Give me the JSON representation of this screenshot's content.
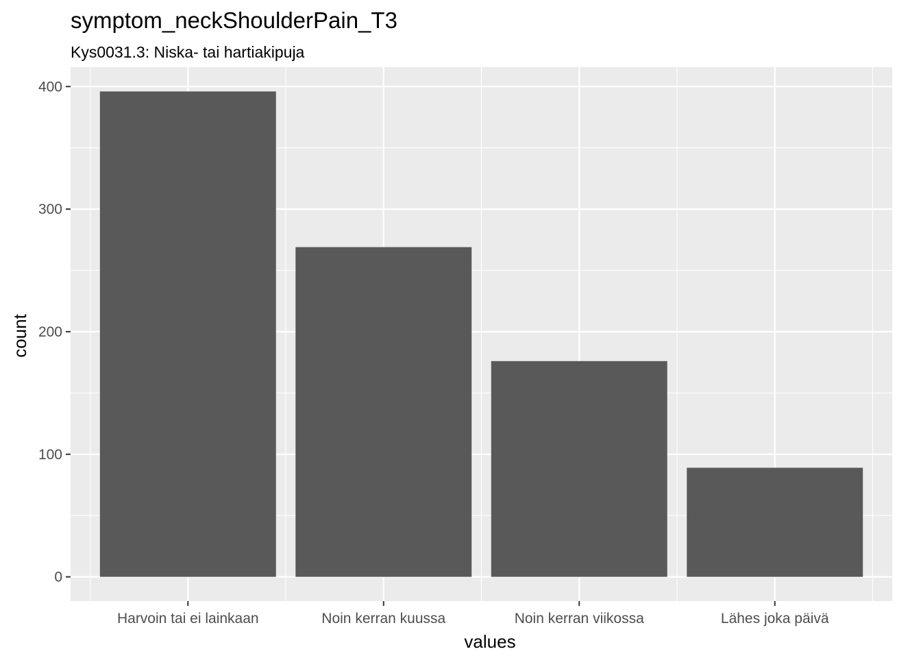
{
  "chart_data": {
    "type": "bar",
    "title": "symptom_neckShoulderPain_T3",
    "subtitle": "Kys0031.3: Niska- tai hartiakipuja",
    "xlabel": "values",
    "ylabel": "count",
    "categories": [
      "Harvoin tai ei lainkaan",
      "Noin kerran kuussa",
      "Noin kerran viikossa",
      "Lähes joka päivä"
    ],
    "values": [
      396,
      269,
      176,
      89
    ],
    "ylim": [
      -19.8,
      415.8
    ],
    "yticks": [
      0,
      100,
      200,
      300,
      400
    ],
    "ytick_labels": [
      "0",
      "100",
      "200",
      "300",
      "400"
    ],
    "grid": true,
    "colors": {
      "panel": "#ebebeb",
      "grid": "#ffffff",
      "bar": "#595959",
      "tick_text": "#4d4d4d",
      "tick_mark": "#333333"
    }
  }
}
